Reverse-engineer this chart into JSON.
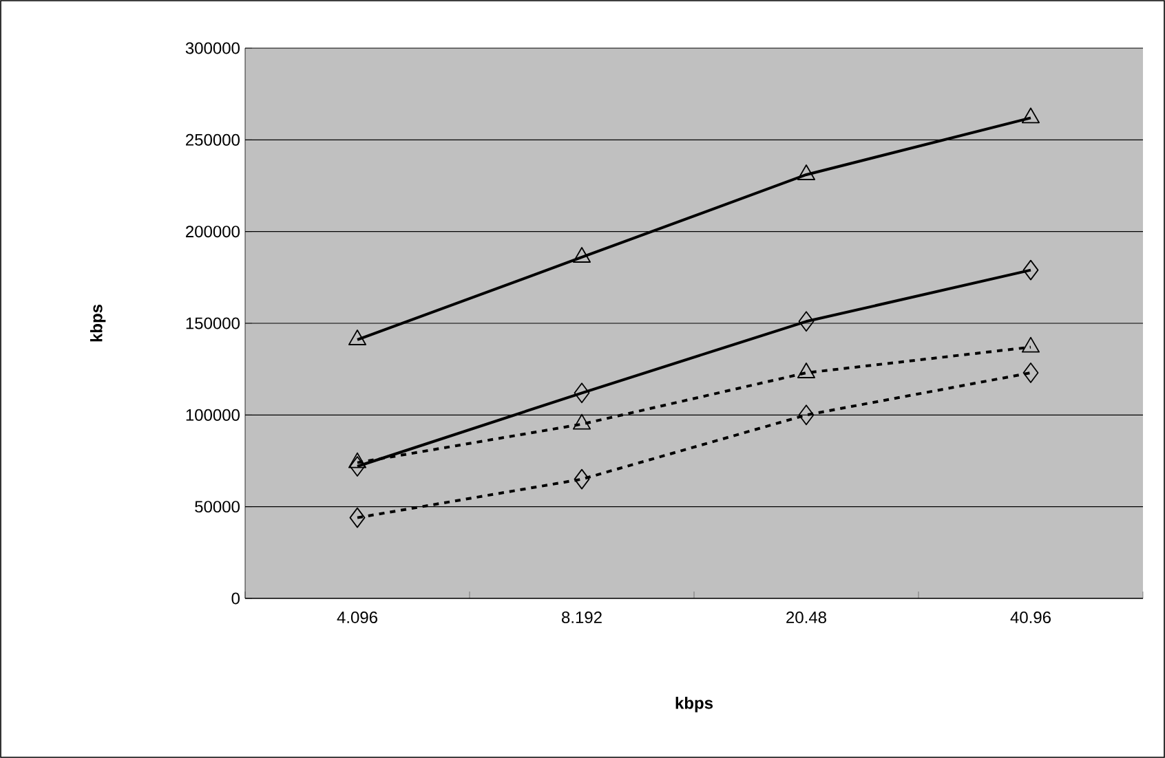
{
  "chart_data": {
    "type": "line",
    "xlabel": "**kbps**",
    "ylabel": "**kbps**",
    "categories": [
      "4.096",
      "8.192",
      "20.48",
      "40.96"
    ],
    "ylim": [
      0,
      300000
    ],
    "yticks": [
      0,
      50000,
      100000,
      150000,
      200000,
      250000,
      300000
    ],
    "grid": "y",
    "series": [
      {
        "color": "#000000",
        "marker": "triangle",
        "line_style": "solid",
        "values": [
          141000,
          186000,
          231000,
          262000
        ]
      },
      {
        "color": "#000000",
        "marker": "diamond",
        "line_style": "solid",
        "values": [
          72000,
          112000,
          151000,
          179000
        ]
      },
      {
        "color": "#000000",
        "marker": "triangle",
        "line_style": "dashed",
        "values": [
          74000,
          95000,
          123000,
          137000
        ]
      },
      {
        "color": "#000000",
        "marker": "diamond",
        "line_style": "dashed",
        "values": [
          44000,
          65000,
          100000,
          123000
        ]
      }
    ]
  }
}
